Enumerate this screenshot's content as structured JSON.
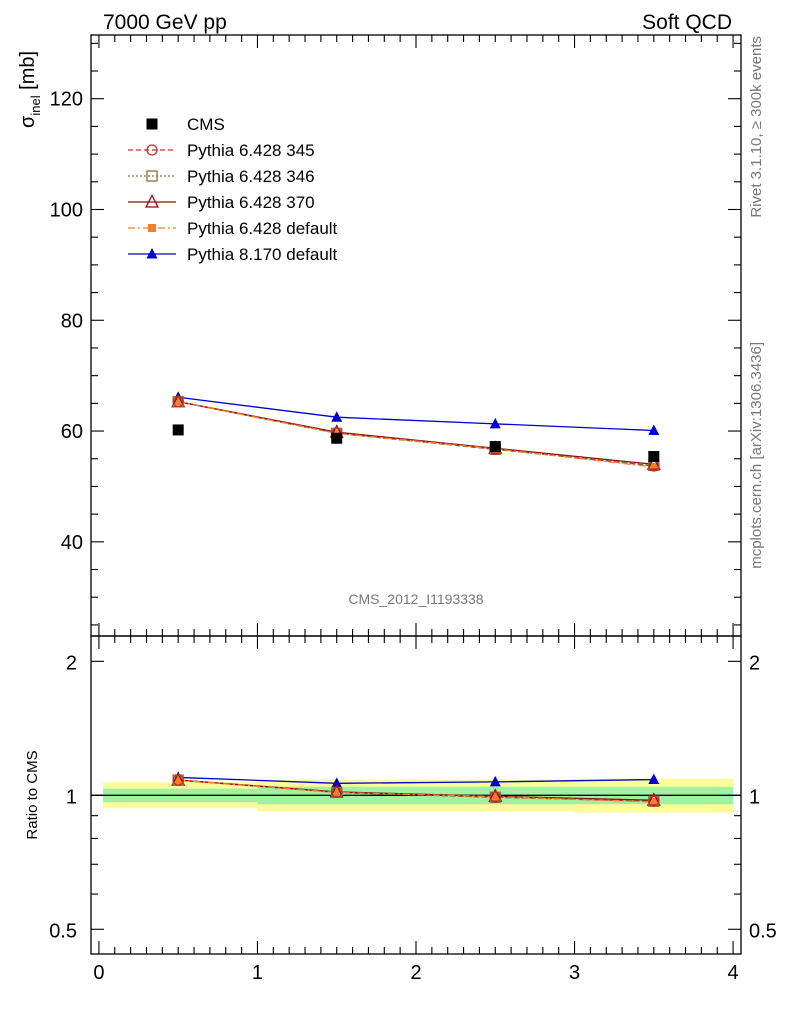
{
  "header": {
    "left": "7000 GeV pp",
    "right": "Soft QCD"
  },
  "side": {
    "top": "Rivet 3.1.10, ≥ 300k events",
    "bottom": "mcplots.cern.ch [arXiv:1306.3436]"
  },
  "watermark": "CMS_2012_I1193338",
  "chart_data": [
    {
      "type": "line",
      "panel": "main",
      "ylabel_main": "σ",
      "ylabel_sub": "inel",
      "ylabel_unit": " [mb]",
      "xlim": [
        -0.05,
        4.05
      ],
      "ylim": [
        23,
        131.5
      ],
      "yticks": [
        40,
        60,
        80,
        100,
        120
      ],
      "x": [
        0.5,
        1.5,
        2.5,
        3.5
      ],
      "series": [
        {
          "name": "CMS",
          "color": "#000000",
          "marker": "square-filled",
          "line": "none",
          "values": [
            60.2,
            58.7,
            57.2,
            55.4
          ]
        },
        {
          "name": "Pythia 6.428 345",
          "color": "#c03030",
          "marker": "circle-open",
          "line": "dashed",
          "values": [
            65.3,
            59.6,
            56.7,
            53.7
          ]
        },
        {
          "name": "Pythia 6.428 346",
          "color": "#8b6f2f",
          "marker": "square-open",
          "line": "dotted",
          "values": [
            65.3,
            59.6,
            56.7,
            53.8
          ]
        },
        {
          "name": "Pythia 6.428 370",
          "color": "#8b1010",
          "marker": "triangle-open",
          "line": "solid",
          "values": [
            65.3,
            59.8,
            56.9,
            54.0
          ]
        },
        {
          "name": "Pythia 6.428 default",
          "color": "#f08030",
          "marker": "square-small-filled",
          "line": "dashdot",
          "values": [
            65.3,
            59.6,
            56.8,
            53.5
          ]
        },
        {
          "name": "Pythia 8.170 default",
          "color": "#0000cc",
          "marker": "triangle-filled",
          "line": "solid",
          "values": [
            66.1,
            62.5,
            61.3,
            60.1
          ]
        }
      ]
    },
    {
      "type": "line",
      "panel": "ratio",
      "ylabel": "Ratio to CMS",
      "ylim": [
        0.44,
        2.28
      ],
      "yticks": [
        0.5,
        1,
        2
      ],
      "yticklabels": [
        "0.5",
        "1",
        "2"
      ],
      "xticks": [
        0,
        1,
        2,
        3,
        4
      ],
      "x": [
        0.5,
        1.5,
        2.5,
        3.5
      ],
      "bands": [
        {
          "x0": 0,
          "x1": 1,
          "outer": [
            0.935,
            1.07
          ],
          "inner": [
            0.965,
            1.035
          ]
        },
        {
          "x0": 1,
          "x1": 2,
          "outer": [
            0.92,
            1.085
          ],
          "inner": [
            0.955,
            1.045
          ]
        },
        {
          "x0": 2,
          "x1": 3,
          "outer": [
            0.92,
            1.085
          ],
          "inner": [
            0.955,
            1.045
          ]
        },
        {
          "x0": 3,
          "x1": 4,
          "outer": [
            0.915,
            1.09
          ],
          "inner": [
            0.955,
            1.045
          ]
        }
      ],
      "series": [
        {
          "name": "Pythia 6.428 345",
          "values": [
            1.082,
            1.015,
            0.99,
            0.97
          ]
        },
        {
          "name": "Pythia 6.428 346",
          "values": [
            1.082,
            1.015,
            0.99,
            0.97
          ]
        },
        {
          "name": "Pythia 6.428 370",
          "values": [
            1.082,
            1.018,
            0.995,
            0.975
          ]
        },
        {
          "name": "Pythia 6.428 default",
          "values": [
            1.082,
            1.015,
            0.993,
            0.966
          ]
        },
        {
          "name": "Pythia 8.170 default",
          "values": [
            1.097,
            1.064,
            1.072,
            1.085
          ]
        }
      ],
      "band_colors": {
        "outer": "#fdfb9a",
        "inner": "#a0f2a0"
      }
    }
  ]
}
